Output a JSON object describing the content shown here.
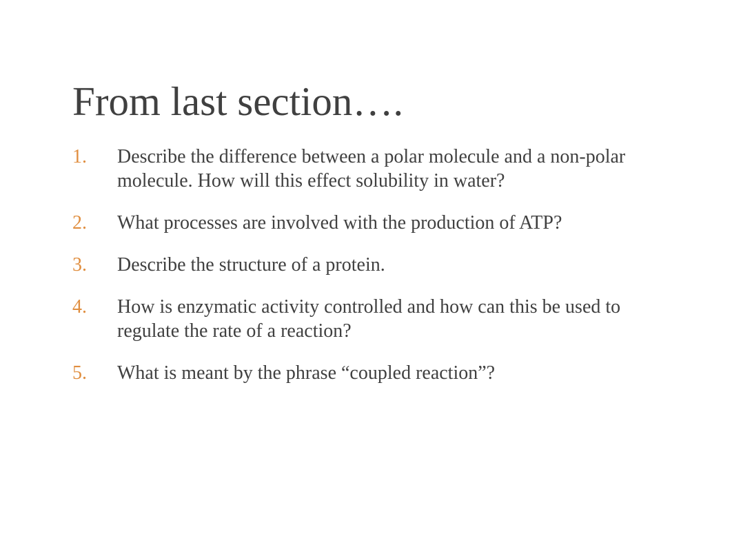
{
  "slide": {
    "title": "From last section….",
    "title_color": "#404040",
    "title_fontsize": 59,
    "number_color": "#e08e3f",
    "body_color": "#404040",
    "body_fontsize": 28,
    "background_color": "#ffffff",
    "items": [
      {
        "n": "1.",
        "text": "Describe the difference between a polar molecule and a non-polar molecule. How will this effect solubility in water?"
      },
      {
        "n": "2.",
        "text": "What processes are involved with the production of ATP?"
      },
      {
        "n": "3.",
        "text": "Describe the structure of a protein."
      },
      {
        "n": "4.",
        "text": "How is enzymatic activity controlled and how can this be used to regulate the rate of a reaction?"
      },
      {
        "n": "5.",
        "text": "What is meant by the phrase “coupled reaction”?"
      }
    ]
  }
}
